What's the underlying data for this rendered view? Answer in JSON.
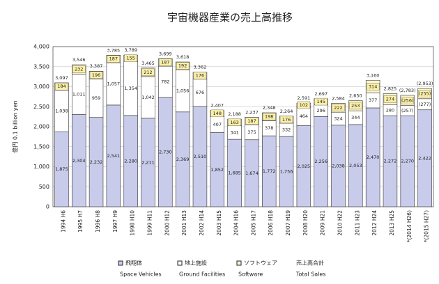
{
  "chart_data": {
    "type": "stacked_bar",
    "title": "宇宙機器産業の売上高推移",
    "y_label": "億円  0.1 billion yen",
    "categories": [
      "1994 H6",
      "1995 H7",
      "1996 H8",
      "1997 H9",
      "1998 H10",
      "1999 H11",
      "2000 H12",
      "2001 H13",
      "2002 H14",
      "2003 H15",
      "2004 H16",
      "2005 H17",
      "2006 H18",
      "2007 H19",
      "2008 H20",
      "2009 H21",
      "2010 H22",
      "2011 H23",
      "2012 H24",
      "2013 H25",
      "*(2014 H26)",
      "*(2015 H27)"
    ],
    "series": [
      {
        "name": "飛翔体",
        "subname": "Space Vehicles",
        "color": "#c9cbeb",
        "values": [
          1875,
          2304,
          2232,
          2541,
          2280,
          2211,
          2730,
          2369,
          2510,
          1852,
          1685,
          1674,
          1772,
          1756,
          2025,
          2256,
          2038,
          2053,
          2470,
          2272,
          2270,
          2422
        ],
        "value_labels": [
          "1,875",
          "2,304",
          "2,232",
          "2,541",
          "2,280",
          "2,211",
          "2,730",
          "2,369",
          "2,510",
          "1,852",
          "1,685",
          "1,674",
          "1,772",
          "1,756",
          "2,025",
          "2,256",
          "2,038",
          "2,053",
          "2,470",
          "2,272",
          "2,270",
          "2,422"
        ]
      },
      {
        "name": "地上施設",
        "subname": "Ground Facilities",
        "color": "#ffffff",
        "values": [
          1038,
          1011,
          959,
          1057,
          1354,
          1042,
          782,
          1056,
          676,
          407,
          341,
          375,
          378,
          332,
          464,
          296,
          324,
          344,
          377,
          280,
          257,
          277
        ],
        "value_labels": [
          "1,038",
          "1,011",
          "959",
          "1,057",
          "1,354",
          "1,042",
          "782",
          "1,056",
          "676",
          "407",
          "341",
          "375",
          "378",
          "332",
          "464",
          "296",
          "324",
          "344",
          "377",
          "280",
          "(257)",
          "(277)"
        ]
      },
      {
        "name": "ソフトウェア",
        "subname": "Software",
        "color": "#fdf6cf",
        "values": [
          184,
          232,
          196,
          187,
          155,
          212,
          187,
          192,
          176,
          148,
          163,
          187,
          198,
          176,
          102,
          145,
          222,
          253,
          314,
          274,
          256,
          255
        ],
        "value_labels": [
          "184",
          "232",
          "196",
          "187",
          "155",
          "212",
          "187",
          "192",
          "176",
          "148",
          "163",
          "187",
          "198",
          "176",
          "102",
          "145",
          "222",
          "253",
          "314",
          "274",
          "(256)",
          "(255)"
        ]
      }
    ],
    "totals": {
      "name": "売上高合計",
      "subname": "Total Sales",
      "values": [
        3097,
        3546,
        3387,
        3785,
        3789,
        3465,
        3699,
        3618,
        3362,
        2407,
        2188,
        2237,
        2348,
        2264,
        2591,
        2697,
        2584,
        2650,
        3160,
        2825,
        2783,
        2953
      ],
      "value_labels": [
        "3,097",
        "3,546",
        "3,387",
        "3,785",
        "3,789",
        "3,465",
        "3,699",
        "3,618",
        "3,362",
        "2,407",
        "2,188",
        "2,237",
        "2,348",
        "2,264",
        "2,591",
        "2,697",
        "2,584",
        "2,650",
        "3,160",
        "2,825",
        "(2,783)",
        "(2,953)"
      ]
    },
    "ylim": [
      0,
      4000
    ],
    "yticks": [
      0,
      500,
      {
        "value": 1000,
        "label": "1,000"
      },
      {
        "value": 1500,
        "label": "1,500"
      },
      {
        "value": 2000,
        "label": "2,000"
      },
      {
        "value": 2500,
        "label": "2,500"
      },
      {
        "value": 3000,
        "label": "3,000"
      },
      {
        "value": 3500,
        "label": "3,500"
      },
      {
        "value": 4000,
        "label": "4,000"
      }
    ],
    "grid": true
  }
}
